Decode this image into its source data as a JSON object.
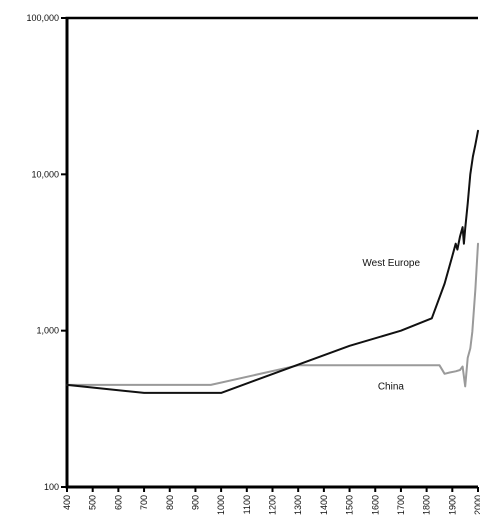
{
  "chart_data": {
    "type": "line",
    "yscale": "log",
    "ylim": [
      100,
      100000
    ],
    "xlim": [
      400,
      2000
    ],
    "grid": false,
    "legend": "none",
    "title": "",
    "xlabel": "",
    "ylabel": "",
    "y_ticks": [
      {
        "value": 100,
        "label": "100"
      },
      {
        "value": 1000,
        "label": "1,000"
      },
      {
        "value": 10000,
        "label": "10,000"
      },
      {
        "value": 100000,
        "label": "100,000"
      }
    ],
    "x_ticks": [
      {
        "value": 400,
        "label": "400"
      },
      {
        "value": 500,
        "label": "500"
      },
      {
        "value": 600,
        "label": "600"
      },
      {
        "value": 700,
        "label": "700"
      },
      {
        "value": 800,
        "label": "800"
      },
      {
        "value": 900,
        "label": "900"
      },
      {
        "value": 1000,
        "label": "1000"
      },
      {
        "value": 1100,
        "label": "1100"
      },
      {
        "value": 1200,
        "label": "1200"
      },
      {
        "value": 1300,
        "label": "1300"
      },
      {
        "value": 1400,
        "label": "1400"
      },
      {
        "value": 1500,
        "label": "1500"
      },
      {
        "value": 1600,
        "label": "1600"
      },
      {
        "value": 1700,
        "label": "1700"
      },
      {
        "value": 1800,
        "label": "1800"
      },
      {
        "value": 1900,
        "label": "1900"
      },
      {
        "value": 2000,
        "label": "2000"
      }
    ],
    "series": [
      {
        "name": "West Europe",
        "color": "#111111",
        "x": [
          400,
          700,
          1000,
          1500,
          1700,
          1820,
          1870,
          1900,
          1913,
          1920,
          1930,
          1940,
          1945,
          1950,
          1960,
          1970,
          1980,
          1990,
          2000
        ],
        "y": [
          450,
          400,
          400,
          800,
          1000,
          1200,
          2000,
          3000,
          3600,
          3300,
          4000,
          4600,
          3600,
          4500,
          6500,
          10000,
          13000,
          15500,
          19000
        ]
      },
      {
        "name": "China",
        "color": "#9a9a9a",
        "x": [
          400,
          960,
          1300,
          1820,
          1850,
          1870,
          1890,
          1913,
          1930,
          1940,
          1950,
          1960,
          1970,
          1978,
          1990,
          2000
        ],
        "y": [
          450,
          450,
          600,
          600,
          600,
          530,
          540,
          550,
          560,
          590,
          440,
          670,
          770,
          980,
          1850,
          3600
        ]
      }
    ],
    "annotations": [
      {
        "text": "West Europe",
        "x": 1550,
        "y": 2600
      },
      {
        "text": "China",
        "x": 1610,
        "y": 420
      }
    ]
  }
}
